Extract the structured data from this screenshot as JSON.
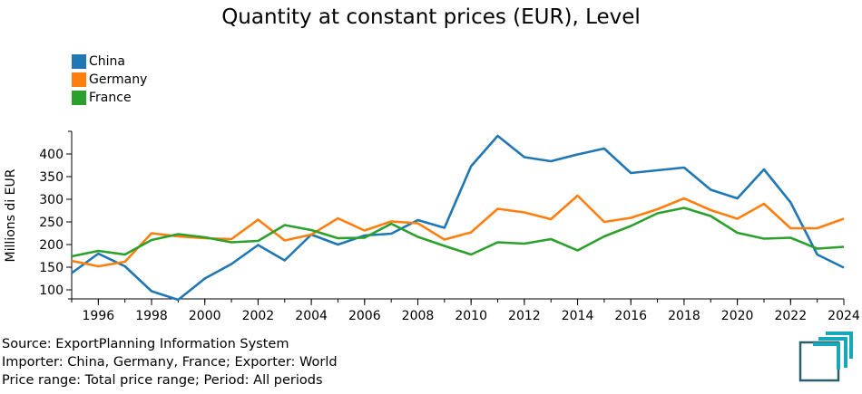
{
  "colors": {
    "China": "#1f77b4",
    "Germany": "#ff7f0e",
    "France": "#2ca02c"
  },
  "logo": {
    "name": "exportplanning-logo-icon",
    "color": "#0e8a9a"
  },
  "footer": {
    "source": "Source: ExportPlanning Information System",
    "importer": "Importer: China, Germany, France; Exporter: World",
    "price": "Price range: Total price range; Period: All periods"
  },
  "chart_data": {
    "type": "line",
    "title": "Quantity at constant prices (EUR), Level",
    "xlabel": "",
    "ylabel": "Millions di EUR",
    "xlim": [
      1995,
      2024
    ],
    "ylim": [
      80,
      450
    ],
    "x_ticks": [
      "1996",
      "1998",
      "2000",
      "2002",
      "2004",
      "2006",
      "2008",
      "2010",
      "2012",
      "2014",
      "2016",
      "2018",
      "2020",
      "2022",
      "2024"
    ],
    "y_ticks": [
      "100",
      "150",
      "200",
      "250",
      "300",
      "350",
      "400"
    ],
    "legend_position": "top-left",
    "grid": false,
    "x": [
      1995,
      1996,
      1997,
      1998,
      1999,
      2000,
      2001,
      2002,
      2003,
      2004,
      2005,
      2006,
      2007,
      2008,
      2009,
      2010,
      2011,
      2012,
      2013,
      2014,
      2015,
      2016,
      2017,
      2018,
      2019,
      2020,
      2021,
      2022,
      2023,
      2024
    ],
    "series": [
      {
        "name": "China",
        "values": [
          137,
          180,
          152,
          97,
          78,
          125,
          157,
          199,
          165,
          222,
          200,
          220,
          224,
          254,
          237,
          373,
          440,
          393,
          384,
          399,
          412,
          358,
          364,
          370,
          321,
          302,
          366,
          293,
          178,
          149
        ]
      },
      {
        "name": "Germany",
        "values": [
          164,
          152,
          162,
          225,
          218,
          214,
          212,
          255,
          209,
          222,
          258,
          231,
          251,
          247,
          211,
          227,
          279,
          271,
          256,
          308,
          250,
          259,
          278,
          302,
          276,
          257,
          290,
          236,
          236,
          257
        ]
      },
      {
        "name": "France",
        "values": [
          174,
          186,
          178,
          210,
          223,
          216,
          205,
          208,
          243,
          232,
          214,
          215,
          246,
          217,
          197,
          178,
          205,
          202,
          212,
          187,
          218,
          241,
          269,
          281,
          263,
          226,
          213,
          215,
          191,
          195
        ]
      }
    ]
  }
}
